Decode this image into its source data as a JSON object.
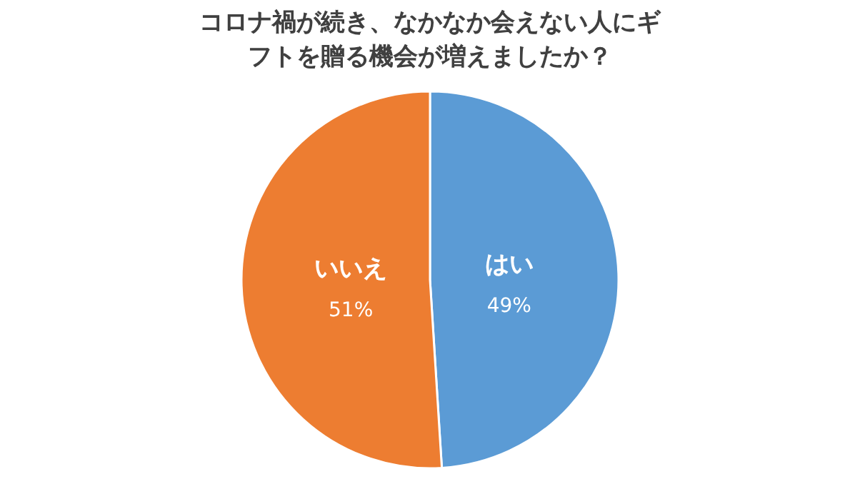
{
  "chart_data": {
    "type": "pie",
    "title": "コロナ禍が続き、なかなか会えない人にギフトを贈る機会が増えましたか？",
    "categories": [
      "はい",
      "いいえ"
    ],
    "values": [
      49,
      51
    ],
    "value_labels": [
      "49%",
      "51%"
    ],
    "colors": [
      "#5b9bd5",
      "#ed7d31"
    ],
    "data_labels": true
  }
}
